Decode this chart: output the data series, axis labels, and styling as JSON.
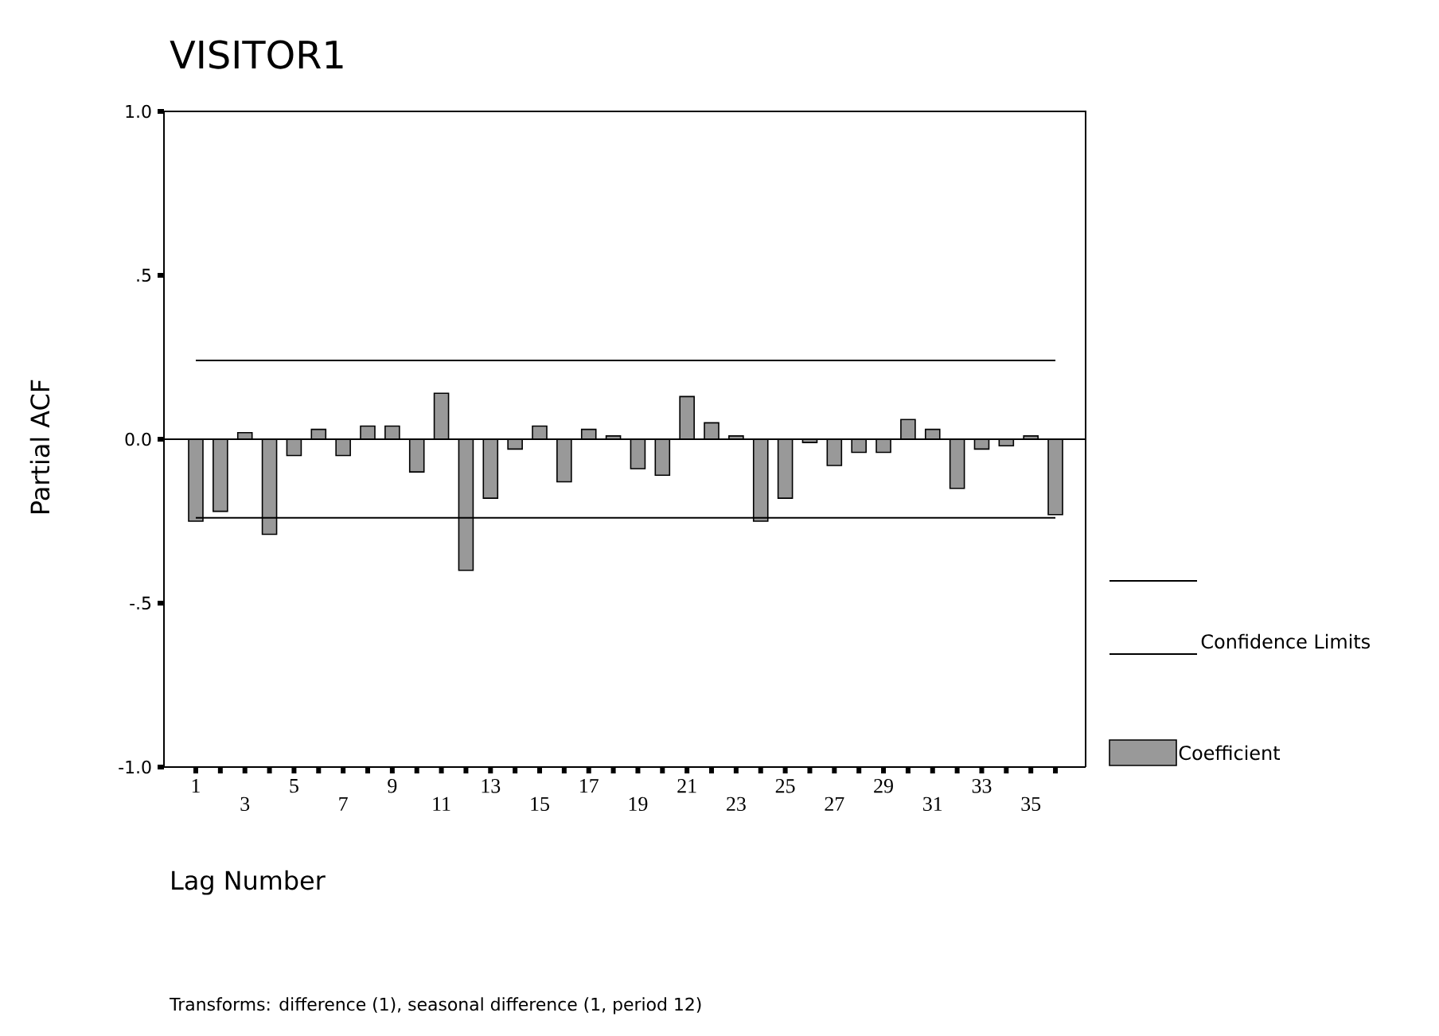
{
  "chart_data": {
    "type": "bar",
    "title": "VISITOR1",
    "xlabel": "Lag Number",
    "ylabel": "Partial ACF",
    "categories": [
      "1",
      null,
      "3",
      null,
      "5",
      null,
      "7",
      null,
      "9",
      null,
      "11",
      null,
      "13",
      null,
      "15",
      null,
      "17",
      null,
      "19",
      null,
      "21",
      null,
      "23",
      null,
      "25",
      null,
      "27",
      null,
      "29",
      null,
      "31",
      null,
      "33",
      null,
      "35",
      null
    ],
    "series": [
      {
        "name": "Coefficient",
        "color": "#999999",
        "values": [
          -0.25,
          -0.22,
          0.02,
          -0.29,
          -0.05,
          0.03,
          -0.05,
          0.04,
          0.04,
          -0.1,
          0.14,
          -0.4,
          -0.18,
          -0.03,
          0.04,
          -0.13,
          0.03,
          0.01,
          -0.09,
          -0.11,
          0.13,
          0.05,
          0.01,
          -0.25,
          -0.18,
          -0.01,
          -0.08,
          -0.04,
          -0.04,
          0.06,
          0.03,
          -0.15,
          -0.03,
          -0.02,
          0.01,
          -0.23
        ]
      }
    ],
    "ylim": [
      -1.0,
      1.0
    ],
    "yticks": [
      {
        "value": -1.0,
        "label": "-1.0"
      },
      {
        "value": -0.5,
        "label": "-.5"
      },
      {
        "value": 0.0,
        "label": "0.0"
      },
      {
        "value": 0.5,
        "label": ".5"
      },
      {
        "value": 1.0,
        "label": "1.0"
      }
    ],
    "ref_lines": [
      {
        "axis": "y",
        "value": 0.24,
        "label": "Confidence Limits",
        "color": "#000000"
      },
      {
        "axis": "y",
        "value": -0.24,
        "color": "#000000"
      }
    ],
    "legend": "right",
    "annotations": [
      "Transforms: difference (1), seasonal difference (1, period 12)"
    ]
  }
}
